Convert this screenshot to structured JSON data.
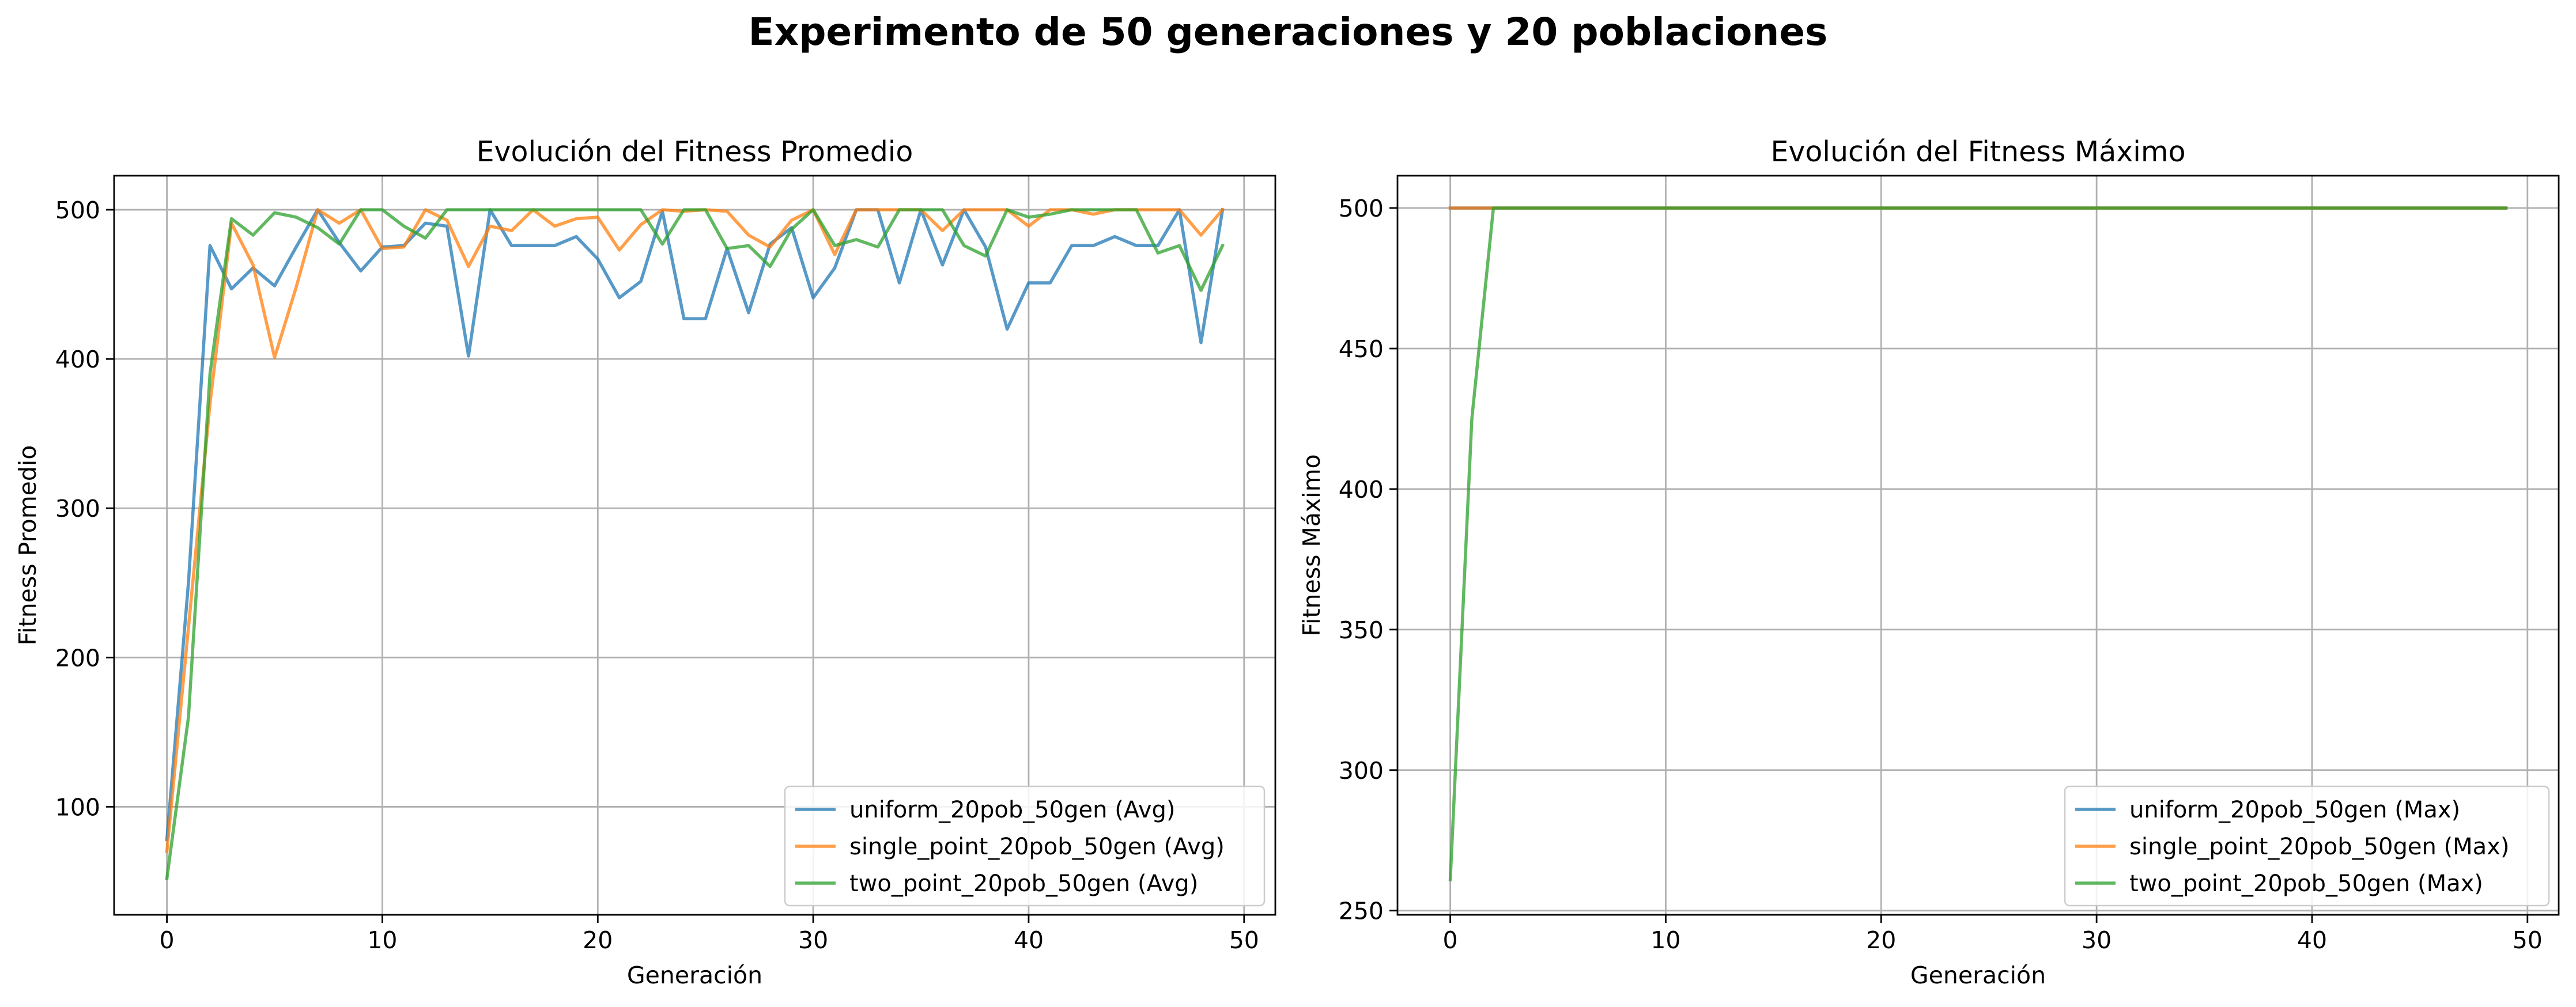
{
  "figure": {
    "suptitle": "Experimento de 50 generaciones y 20 poblaciones"
  },
  "colors": {
    "uniform": "#1f77b4",
    "single_point": "#ff7f0e",
    "two_point": "#2ca02c"
  },
  "chart_data": [
    {
      "type": "line",
      "title": "Evolución del Fitness Promedio",
      "xlabel": "Generación",
      "ylabel": "Fitness Promedio",
      "xlim": [
        -2.45,
        51.45
      ],
      "ylim": [
        27.6,
        522.8
      ],
      "xticks": [
        0,
        10,
        20,
        30,
        40,
        50
      ],
      "yticks": [
        100,
        200,
        300,
        400,
        500
      ],
      "grid": true,
      "legend_position": "lower-right",
      "x": [
        0,
        1,
        2,
        3,
        4,
        5,
        6,
        7,
        8,
        9,
        10,
        11,
        12,
        13,
        14,
        15,
        16,
        17,
        18,
        19,
        20,
        21,
        22,
        23,
        24,
        25,
        26,
        27,
        28,
        29,
        30,
        31,
        32,
        33,
        34,
        35,
        36,
        37,
        38,
        39,
        40,
        41,
        42,
        43,
        44,
        45,
        46,
        47,
        48,
        49
      ],
      "series": [
        {
          "name": "uniform_20pob_50gen (Avg)",
          "color": "#1f77b4",
          "values": [
            78,
            250,
            476,
            447,
            461,
            449,
            475,
            500,
            478,
            459,
            475,
            476,
            491,
            489,
            402,
            500,
            476,
            476,
            476,
            482,
            467,
            441,
            452,
            499,
            427,
            427,
            474,
            431,
            477,
            488,
            441,
            461,
            500,
            500,
            451,
            500,
            463,
            500,
            475,
            420,
            451,
            451,
            476,
            476,
            482,
            476,
            476,
            500,
            411,
            500
          ]
        },
        {
          "name": "single_point_20pob_50gen (Avg)",
          "color": "#ff7f0e",
          "values": [
            70,
            220,
            370,
            491,
            463,
            401,
            448,
            500,
            491,
            500,
            474,
            475,
            500,
            493,
            462,
            489,
            486,
            500,
            489,
            494,
            495,
            473,
            490,
            500,
            499,
            500,
            499,
            483,
            475,
            493,
            500,
            470,
            500,
            500,
            500,
            500,
            486,
            500,
            500,
            500,
            489,
            500,
            500,
            497,
            500,
            500,
            500,
            500,
            483,
            500
          ]
        },
        {
          "name": "two_point_20pob_50gen (Avg)",
          "color": "#2ca02c",
          "values": [
            52,
            160,
            390,
            494,
            483,
            498,
            495,
            488,
            477,
            500,
            500,
            489,
            481,
            500,
            500,
            500,
            500,
            500,
            500,
            500,
            500,
            500,
            500,
            477,
            500,
            500,
            474,
            476,
            462,
            487,
            500,
            476,
            480,
            475,
            500,
            500,
            500,
            476,
            469,
            500,
            495,
            497,
            500,
            500,
            500,
            500,
            471,
            476,
            446,
            476
          ]
        }
      ]
    },
    {
      "type": "line",
      "title": "Evolución del Fitness Máximo",
      "xlabel": "Generación",
      "ylabel": "Fitness Máximo",
      "xlim": [
        -2.45,
        51.45
      ],
      "ylim": [
        248.5,
        511.5
      ],
      "xticks": [
        0,
        10,
        20,
        30,
        40,
        50
      ],
      "yticks": [
        250,
        300,
        350,
        400,
        450,
        500
      ],
      "grid": true,
      "legend_position": "lower-right",
      "x": [
        0,
        1,
        2,
        3,
        4,
        5,
        6,
        7,
        8,
        9,
        10,
        11,
        12,
        13,
        14,
        15,
        16,
        17,
        18,
        19,
        20,
        21,
        22,
        23,
        24,
        25,
        26,
        27,
        28,
        29,
        30,
        31,
        32,
        33,
        34,
        35,
        36,
        37,
        38,
        39,
        40,
        41,
        42,
        43,
        44,
        45,
        46,
        47,
        48,
        49
      ],
      "series": [
        {
          "name": "uniform_20pob_50gen (Max)",
          "color": "#1f77b4",
          "values": [
            500,
            500,
            500,
            500,
            500,
            500,
            500,
            500,
            500,
            500,
            500,
            500,
            500,
            500,
            500,
            500,
            500,
            500,
            500,
            500,
            500,
            500,
            500,
            500,
            500,
            500,
            500,
            500,
            500,
            500,
            500,
            500,
            500,
            500,
            500,
            500,
            500,
            500,
            500,
            500,
            500,
            500,
            500,
            500,
            500,
            500,
            500,
            500,
            500,
            500
          ]
        },
        {
          "name": "single_point_20pob_50gen (Max)",
          "color": "#ff7f0e",
          "values": [
            500,
            500,
            500,
            500,
            500,
            500,
            500,
            500,
            500,
            500,
            500,
            500,
            500,
            500,
            500,
            500,
            500,
            500,
            500,
            500,
            500,
            500,
            500,
            500,
            500,
            500,
            500,
            500,
            500,
            500,
            500,
            500,
            500,
            500,
            500,
            500,
            500,
            500,
            500,
            500,
            500,
            500,
            500,
            500,
            500,
            500,
            500,
            500,
            500,
            500
          ]
        },
        {
          "name": "two_point_20pob_50gen (Max)",
          "color": "#2ca02c",
          "values": [
            261,
            425,
            500,
            500,
            500,
            500,
            500,
            500,
            500,
            500,
            500,
            500,
            500,
            500,
            500,
            500,
            500,
            500,
            500,
            500,
            500,
            500,
            500,
            500,
            500,
            500,
            500,
            500,
            500,
            500,
            500,
            500,
            500,
            500,
            500,
            500,
            500,
            500,
            500,
            500,
            500,
            500,
            500,
            500,
            500,
            500,
            500,
            500,
            500,
            500
          ]
        }
      ]
    }
  ]
}
